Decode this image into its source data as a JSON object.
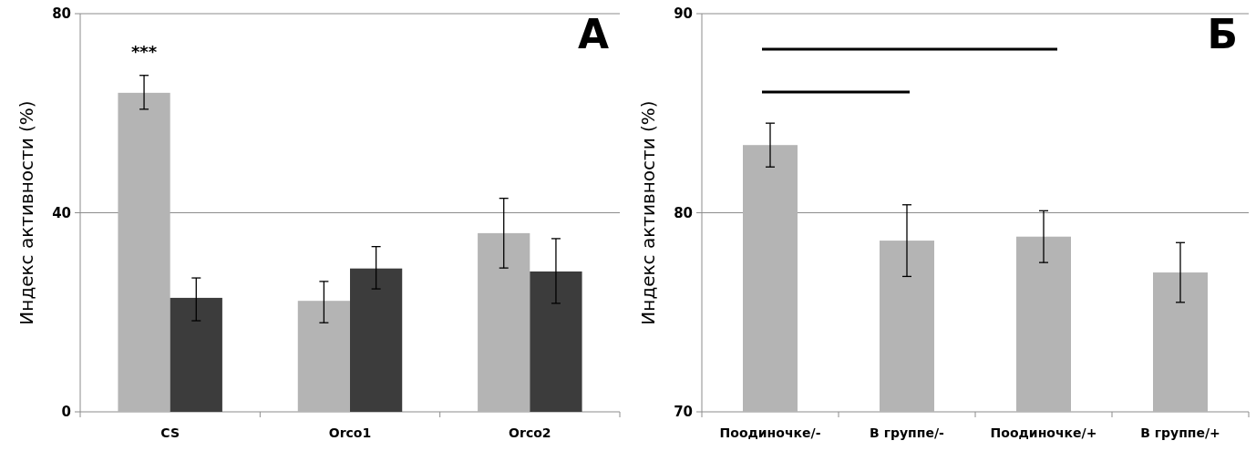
{
  "chart_data": [
    {
      "type": "bar",
      "title": "А",
      "ylabel": "Индекс активности (%)",
      "categories": [
        "CS",
        "Orco1",
        "Orco2"
      ],
      "series": [
        {
          "color": "#b4b4b4",
          "values": [
            64.1,
            22.3,
            35.9
          ],
          "errors": [
            [
              60.8,
              67.6
            ],
            [
              17.9,
              26.2
            ],
            [
              28.9,
              42.9
            ]
          ]
        },
        {
          "color": "#3c3c3c",
          "values": [
            22.9,
            28.8,
            28.2
          ],
          "errors": [
            [
              18.3,
              26.9
            ],
            [
              24.7,
              33.2
            ],
            [
              21.8,
              34.8
            ]
          ]
        }
      ],
      "ylim": [
        0,
        80
      ],
      "yticks": [
        0,
        40,
        80
      ],
      "grid": "y",
      "annotations": [
        "***"
      ]
    },
    {
      "type": "bar",
      "title": "Б",
      "ylabel": "Индекс активности (%)",
      "categories": [
        "Поодиночке/-",
        "В группе/-",
        "Поодиночке/+",
        "В группе/+"
      ],
      "series": [
        {
          "color": "#b4b4b4",
          "values": [
            83.4,
            78.6,
            78.8,
            77.0
          ],
          "errors": [
            [
              82.3,
              84.5
            ],
            [
              76.8,
              80.4
            ],
            [
              77.5,
              80.1
            ],
            [
              75.5,
              78.5
            ]
          ]
        }
      ],
      "ylim": [
        70,
        90
      ],
      "yticks": [
        70,
        80,
        90
      ],
      "grid": "y"
    }
  ]
}
